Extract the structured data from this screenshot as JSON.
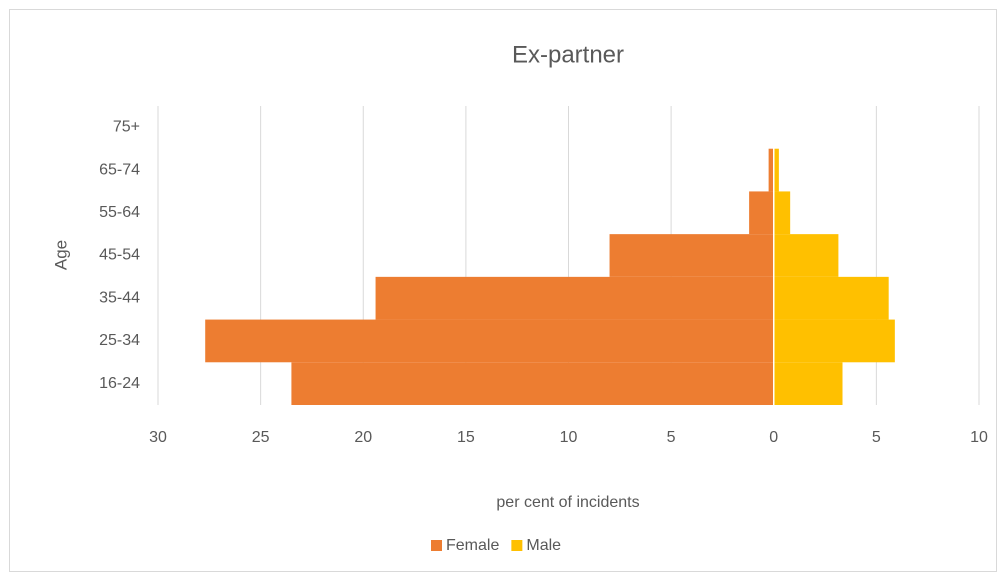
{
  "chart_data": {
    "type": "pyramid",
    "title": "Ex-partner",
    "x_label": "per cent of incidents",
    "y_label": "Age",
    "categories": [
      "16-24",
      "25-34",
      "35-44",
      "45-54",
      "55-64",
      "65-74",
      "75+"
    ],
    "series": [
      {
        "name": "Female",
        "color": "#ed7d31",
        "values": [
          -23.5,
          -27.7,
          -19.4,
          -8.0,
          -1.2,
          -0.25,
          0
        ]
      },
      {
        "name": "Male",
        "color": "#ffc000",
        "values": [
          3.35,
          5.9,
          5.6,
          3.15,
          0.8,
          0.25,
          0
        ]
      }
    ],
    "xlim": [
      -30,
      10
    ],
    "xticks": [
      {
        "value": -30,
        "label": "30"
      },
      {
        "value": -25,
        "label": "25"
      },
      {
        "value": -20,
        "label": "20"
      },
      {
        "value": -15,
        "label": "15"
      },
      {
        "value": -10,
        "label": "10"
      },
      {
        "value": -5,
        "label": "5"
      },
      0,
      5,
      10
    ],
    "grid": true,
    "legend": "bottom"
  }
}
